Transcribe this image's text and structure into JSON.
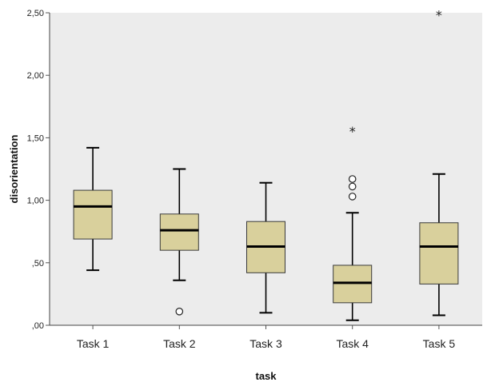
{
  "chart_data": {
    "type": "boxplot",
    "title": "",
    "xlabel": "task",
    "ylabel": "disorientation",
    "ylim": [
      0,
      2.5
    ],
    "y_ticks": [
      {
        "value": 0,
        "label": ",00"
      },
      {
        "value": 0.5,
        "label": ",50"
      },
      {
        "value": 1.0,
        "label": "1,00"
      },
      {
        "value": 1.5,
        "label": "1,50"
      },
      {
        "value": 2.0,
        "label": "2,00"
      },
      {
        "value": 2.5,
        "label": "2,50"
      }
    ],
    "grid": false,
    "colors": {
      "plot_background": "#ececec",
      "box_fill": "#d9d09c",
      "box_stroke": "#3a3a3a",
      "median": "#000000",
      "whisker": "#000000"
    },
    "categories": [
      "Task 1",
      "Task 2",
      "Task 3",
      "Task 4",
      "Task 5"
    ],
    "boxes": [
      {
        "category": "Task 1",
        "min": 0.44,
        "q1": 0.69,
        "median": 0.95,
        "q3": 1.08,
        "max": 1.42,
        "outliers": [],
        "extremes": []
      },
      {
        "category": "Task 2",
        "min": 0.36,
        "q1": 0.6,
        "median": 0.76,
        "q3": 0.89,
        "max": 1.25,
        "outliers": [
          0.11
        ],
        "extremes": []
      },
      {
        "category": "Task 3",
        "min": 0.1,
        "q1": 0.42,
        "median": 0.63,
        "q3": 0.83,
        "max": 1.14,
        "outliers": [],
        "extremes": []
      },
      {
        "category": "Task 4",
        "min": 0.04,
        "q1": 0.18,
        "median": 0.34,
        "q3": 0.48,
        "max": 0.9,
        "outliers": [
          1.03,
          1.11,
          1.17
        ],
        "extremes": [
          1.56
        ]
      },
      {
        "category": "Task 5",
        "min": 0.08,
        "q1": 0.33,
        "median": 0.63,
        "q3": 0.82,
        "max": 1.21,
        "outliers": [],
        "extremes": [
          2.49
        ]
      }
    ]
  }
}
